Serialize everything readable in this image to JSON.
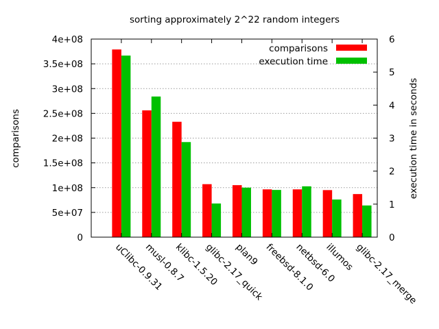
{
  "chart_data": {
    "type": "bar",
    "title": "sorting approximately 2^22 random integers",
    "ylabel": "comparisons",
    "y2label": "execution time in seconds",
    "categories": [
      "uClibc-0.9.31",
      "musl-0.8.7",
      "klibc-1.5.20",
      "glibc-2.17_quick",
      "plan9",
      "freebsd-8.1.0",
      "netbsd-6.0",
      "illumos",
      "glibc-2.17_merge"
    ],
    "ylim": [
      0,
      400000000
    ],
    "y2lim": [
      0,
      6
    ],
    "yticks": [
      "0",
      "5e+07",
      "1e+08",
      "1.5e+08",
      "2e+08",
      "2.5e+08",
      "3e+08",
      "3.5e+08",
      "4e+08"
    ],
    "y2ticks": [
      "0",
      "1",
      "2",
      "3",
      "4",
      "5",
      "6"
    ],
    "grid": true,
    "legend_position": "top-right",
    "series": [
      {
        "name": "comparisons",
        "axis": "left",
        "color": "#ff0000",
        "values": [
          379000000,
          256000000,
          233000000,
          107000000,
          105000000,
          96500000,
          96500000,
          95000000,
          87000000
        ]
      },
      {
        "name": "execution time",
        "axis": "right",
        "color": "#00c000",
        "values": [
          5.5,
          4.26,
          2.88,
          1.02,
          1.5,
          1.43,
          1.54,
          1.14,
          0.96
        ]
      }
    ]
  }
}
